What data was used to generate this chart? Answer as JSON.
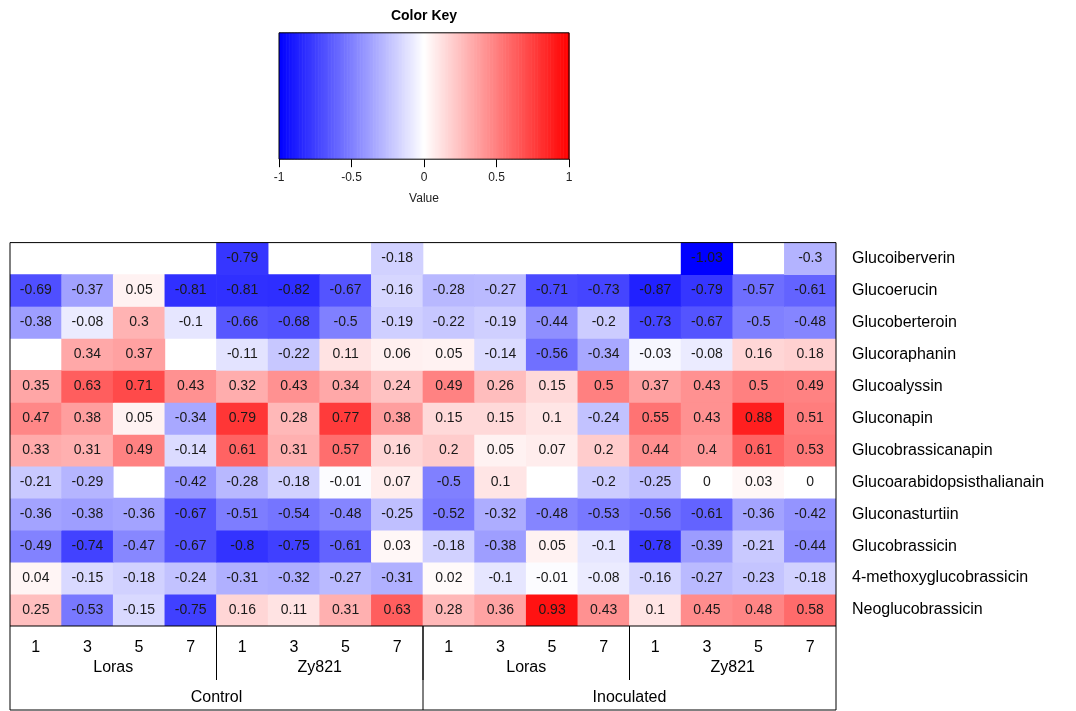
{
  "chart_data": {
    "type": "heatmap",
    "title": "Color Key",
    "clabel": "Value",
    "clim": [
      -1,
      1
    ],
    "cticks": [
      -1,
      -0.5,
      0,
      0.5,
      1
    ],
    "categories": [
      "1",
      "3",
      "5",
      "7",
      "1",
      "3",
      "5",
      "7",
      "1",
      "3",
      "5",
      "7",
      "1",
      "3",
      "5",
      "7"
    ],
    "y_categories": [
      "Glucoiberverin",
      "Glucoerucin",
      "Glucoberteroin",
      "Glucoraphanin",
      "Glucoalyssin",
      "Gluconapin",
      "Glucobrassicanapin",
      "Glucoarabidopsisthalianain",
      "Gluconasturtiin",
      "Glucobrassicin",
      "4-methoxyglucobrassicin",
      "Neoglucobrassicin"
    ],
    "cells": [
      [
        null,
        null,
        null,
        null,
        -0.79,
        null,
        null,
        -0.18,
        null,
        null,
        null,
        null,
        null,
        -1.03,
        null,
        -0.3
      ],
      [
        -0.69,
        -0.37,
        0.05,
        -0.81,
        -0.81,
        -0.82,
        -0.67,
        -0.16,
        -0.28,
        -0.27,
        -0.71,
        -0.73,
        -0.87,
        -0.79,
        -0.57,
        -0.61
      ],
      [
        -0.38,
        -0.08,
        0.3,
        -0.1,
        -0.66,
        -0.68,
        -0.5,
        -0.19,
        -0.22,
        -0.19,
        -0.44,
        -0.2,
        -0.73,
        -0.67,
        -0.5,
        -0.48
      ],
      [
        null,
        0.34,
        0.37,
        null,
        -0.11,
        -0.22,
        0.11,
        0.06,
        0.05,
        -0.14,
        -0.56,
        -0.34,
        -0.03,
        -0.08,
        0.16,
        0.18
      ],
      [
        0.35,
        0.63,
        0.71,
        0.43,
        0.32,
        0.43,
        0.34,
        0.24,
        0.49,
        0.26,
        0.15,
        0.5,
        0.37,
        0.43,
        0.5,
        0.49
      ],
      [
        0.47,
        0.38,
        0.05,
        -0.34,
        0.79,
        0.28,
        0.77,
        0.38,
        0.15,
        0.15,
        0.1,
        -0.24,
        0.55,
        0.43,
        0.88,
        0.51
      ],
      [
        0.33,
        0.31,
        0.49,
        -0.14,
        0.61,
        0.31,
        0.57,
        0.16,
        0.2,
        0.05,
        0.07,
        0.2,
        0.44,
        0.4,
        0.61,
        0.53
      ],
      [
        -0.21,
        -0.29,
        null,
        -0.42,
        -0.28,
        -0.18,
        -0.01,
        0.07,
        -0.5,
        0.1,
        null,
        -0.2,
        -0.25,
        0,
        0.03,
        0
      ],
      [
        -0.36,
        -0.38,
        -0.36,
        -0.67,
        -0.51,
        -0.54,
        -0.48,
        -0.25,
        -0.52,
        -0.32,
        -0.48,
        -0.53,
        -0.56,
        -0.61,
        -0.36,
        -0.42
      ],
      [
        -0.49,
        -0.74,
        -0.47,
        -0.67,
        -0.8,
        -0.75,
        -0.61,
        0.03,
        -0.18,
        -0.38,
        0.05,
        -0.1,
        -0.78,
        -0.39,
        -0.21,
        -0.44
      ],
      [
        0.04,
        -0.15,
        -0.18,
        -0.24,
        -0.31,
        -0.32,
        -0.27,
        -0.31,
        0.02,
        -0.1,
        -0.01,
        -0.08,
        -0.16,
        -0.27,
        -0.23,
        -0.18
      ],
      [
        0.25,
        -0.53,
        -0.15,
        -0.75,
        0.16,
        0.11,
        0.31,
        0.63,
        0.28,
        0.36,
        0.93,
        0.43,
        0.1,
        0.45,
        0.48,
        0.58
      ]
    ],
    "data_labels": true,
    "annotations": [
      "Loras",
      "Zy821",
      "Loras",
      "Zy821",
      "Control",
      "Inoculated"
    ]
  }
}
